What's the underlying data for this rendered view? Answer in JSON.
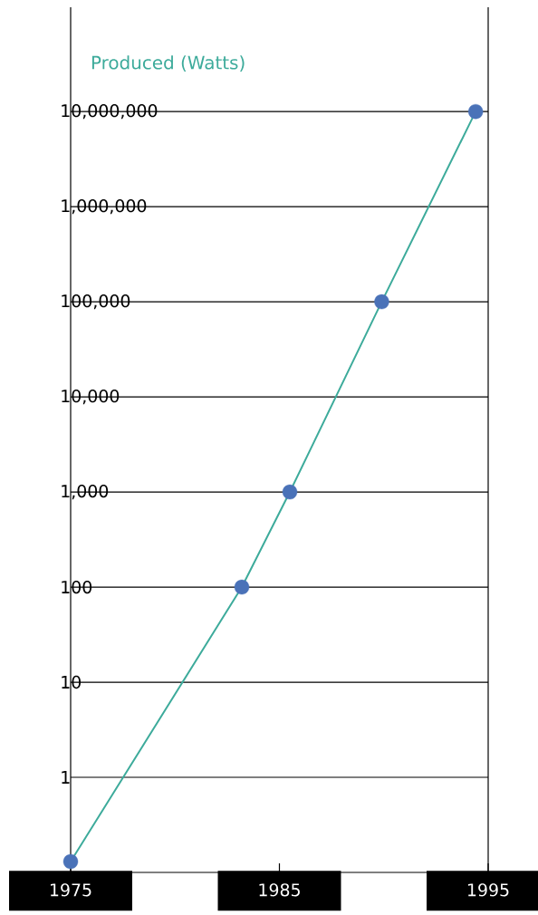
{
  "chart_data": {
    "type": "line",
    "ylabel": "Produced (Watts)",
    "x": [
      1975,
      1983.2,
      1985.5,
      1989.9,
      1994.4
    ],
    "series": [
      {
        "color": "#3dab9b",
        "colors": [
          "#4a72b8",
          "#4a72b8",
          "#4a72b8",
          "#4a72b8",
          "#4a72b8"
        ],
        "values": [
          0.13,
          100,
          1000,
          100000,
          10000000
        ]
      }
    ],
    "log": "y",
    "marker": "circle",
    "line_style": "solid",
    "grid": "y",
    "xlim": [
      1975,
      1995
    ],
    "xticks": [
      1975,
      1985,
      1995
    ],
    "ylim": [
      0.1,
      125000000
    ],
    "yticks": [
      1,
      10,
      100,
      {
        "value": 1000,
        "label": "1,000"
      },
      {
        "value": 10000,
        "label": "10,000"
      },
      {
        "value": 100000,
        "label": "100,000"
      },
      {
        "value": 1000000,
        "label": "1,000,000"
      },
      {
        "value": 10000000,
        "label": "10,000,000"
      }
    ]
  }
}
